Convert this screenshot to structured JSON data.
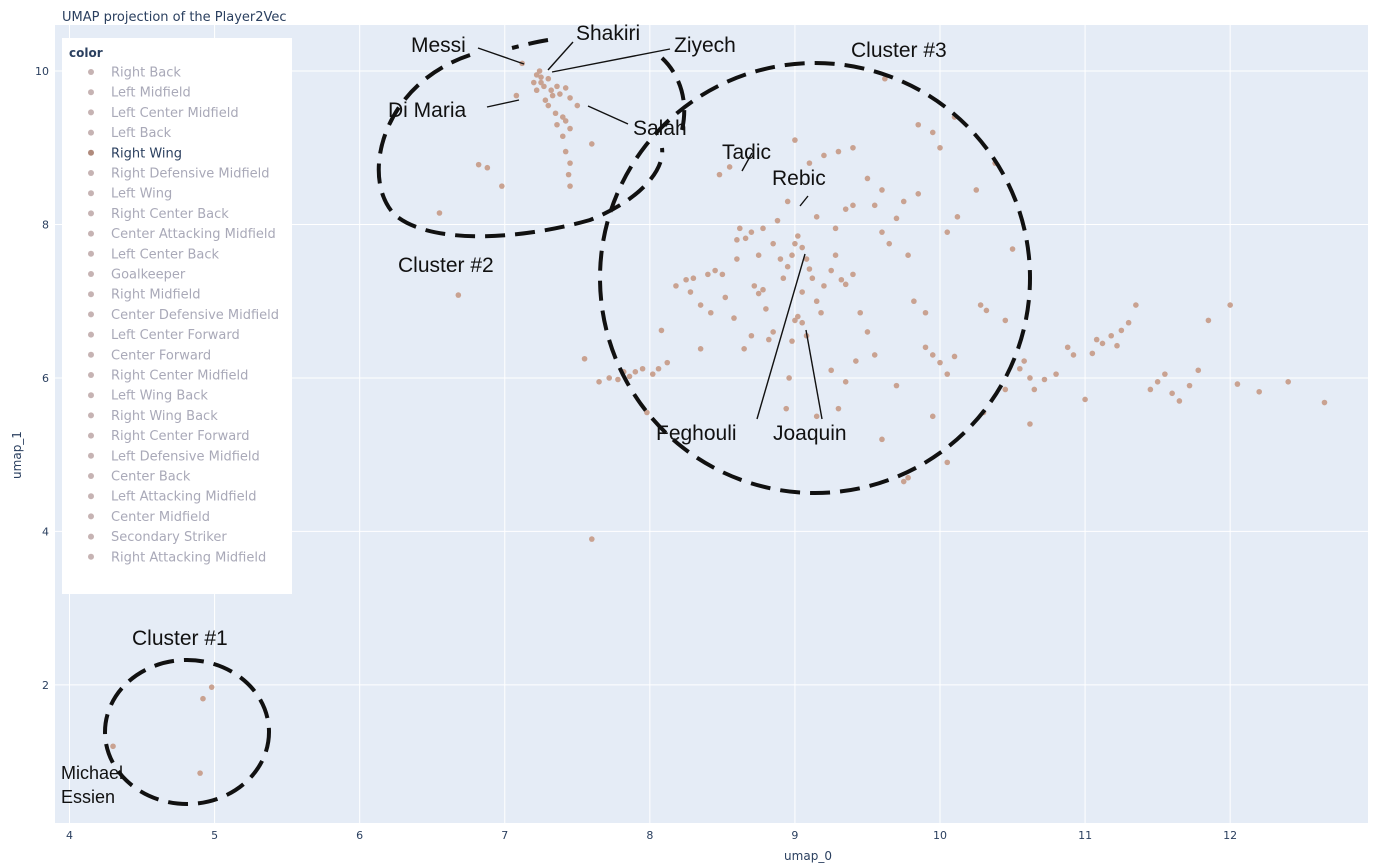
{
  "chart_data": {
    "type": "scatter",
    "title": "UMAP projection of the Player2Vec",
    "xlabel": "umap_0",
    "ylabel": "umap_1",
    "xlim": [
      3.9,
      12.95
    ],
    "ylim": [
      0.2,
      10.6
    ],
    "x_ticks": [
      4,
      5,
      6,
      7,
      8,
      9,
      10,
      11,
      12
    ],
    "y_ticks": [
      2,
      4,
      6,
      8,
      10
    ],
    "grid": true,
    "legend_title": "color",
    "legend_placement": "top-left",
    "point_color": "#c9a291",
    "legend": [
      {
        "label": "Right Back",
        "active": false
      },
      {
        "label": "Left Midfield",
        "active": false
      },
      {
        "label": "Left Center Midfield",
        "active": false
      },
      {
        "label": "Left Back",
        "active": false
      },
      {
        "label": "Right Wing",
        "active": true
      },
      {
        "label": "Right Defensive Midfield",
        "active": false
      },
      {
        "label": "Left Wing",
        "active": false
      },
      {
        "label": "Right Center Back",
        "active": false
      },
      {
        "label": "Center Attacking Midfield",
        "active": false
      },
      {
        "label": "Left Center Back",
        "active": false
      },
      {
        "label": "Goalkeeper",
        "active": false
      },
      {
        "label": "Right Midfield",
        "active": false
      },
      {
        "label": "Center Defensive Midfield",
        "active": false
      },
      {
        "label": "Left Center Forward",
        "active": false
      },
      {
        "label": "Center Forward",
        "active": false
      },
      {
        "label": "Right Center Midfield",
        "active": false
      },
      {
        "label": "Left Wing Back",
        "active": false
      },
      {
        "label": "Right Wing Back",
        "active": false
      },
      {
        "label": "Right Center Forward",
        "active": false
      },
      {
        "label": "Left Defensive Midfield",
        "active": false
      },
      {
        "label": "Center Back",
        "active": false
      },
      {
        "label": "Left Attacking Midfield",
        "active": false
      },
      {
        "label": "Center Midfield",
        "active": false
      },
      {
        "label": "Secondary Striker",
        "active": false
      },
      {
        "label": "Right Attacking Midfield",
        "active": false
      }
    ],
    "points": [
      [
        4.3,
        1.2
      ],
      [
        4.9,
        0.85
      ],
      [
        4.92,
        1.82
      ],
      [
        4.98,
        1.97
      ],
      [
        6.55,
        8.15
      ],
      [
        6.68,
        7.08
      ],
      [
        6.82,
        8.78
      ],
      [
        6.88,
        8.74
      ],
      [
        6.98,
        8.5
      ],
      [
        7.08,
        9.68
      ],
      [
        7.12,
        10.1
      ],
      [
        7.22,
        9.95
      ],
      [
        7.24,
        10.0
      ],
      [
        7.25,
        9.92
      ],
      [
        7.22,
        9.75
      ],
      [
        7.25,
        9.85
      ],
      [
        7.27,
        9.8
      ],
      [
        7.3,
        9.9
      ],
      [
        7.32,
        9.75
      ],
      [
        7.2,
        9.85
      ],
      [
        7.28,
        9.62
      ],
      [
        7.33,
        9.68
      ],
      [
        7.36,
        9.8
      ],
      [
        7.38,
        9.7
      ],
      [
        7.42,
        9.78
      ],
      [
        7.45,
        9.65
      ],
      [
        7.3,
        9.55
      ],
      [
        7.35,
        9.45
      ],
      [
        7.4,
        9.4
      ],
      [
        7.36,
        9.3
      ],
      [
        7.42,
        9.35
      ],
      [
        7.45,
        9.25
      ],
      [
        7.4,
        9.15
      ],
      [
        7.42,
        8.95
      ],
      [
        7.45,
        8.8
      ],
      [
        7.44,
        8.65
      ],
      [
        7.45,
        8.5
      ],
      [
        7.5,
        9.55
      ],
      [
        7.6,
        9.05
      ],
      [
        7.55,
        6.25
      ],
      [
        7.6,
        3.9
      ],
      [
        7.65,
        5.95
      ],
      [
        7.72,
        6.0
      ],
      [
        7.78,
        5.98
      ],
      [
        7.82,
        6.08
      ],
      [
        7.86,
        6.02
      ],
      [
        7.9,
        6.08
      ],
      [
        7.95,
        6.12
      ],
      [
        7.98,
        5.55
      ],
      [
        8.02,
        6.05
      ],
      [
        8.06,
        6.12
      ],
      [
        8.08,
        6.62
      ],
      [
        8.12,
        6.2
      ],
      [
        8.18,
        7.2
      ],
      [
        8.25,
        7.28
      ],
      [
        8.3,
        7.3
      ],
      [
        8.35,
        6.38
      ],
      [
        8.4,
        7.35
      ],
      [
        8.45,
        7.4
      ],
      [
        8.5,
        7.35
      ],
      [
        8.48,
        8.65
      ],
      [
        8.55,
        8.75
      ],
      [
        8.6,
        7.8
      ],
      [
        8.62,
        7.95
      ],
      [
        8.66,
        7.82
      ],
      [
        8.7,
        7.9
      ],
      [
        8.72,
        7.2
      ],
      [
        8.75,
        7.1
      ],
      [
        8.78,
        7.15
      ],
      [
        8.8,
        6.9
      ],
      [
        8.82,
        6.5
      ],
      [
        8.85,
        6.6
      ],
      [
        8.9,
        7.55
      ],
      [
        8.92,
        7.3
      ],
      [
        8.95,
        7.45
      ],
      [
        8.98,
        7.6
      ],
      [
        9.0,
        7.75
      ],
      [
        9.02,
        7.85
      ],
      [
        9.05,
        7.7
      ],
      [
        9.08,
        7.55
      ],
      [
        9.1,
        7.42
      ],
      [
        9.12,
        7.3
      ],
      [
        9.15,
        7.0
      ],
      [
        9.18,
        6.85
      ],
      [
        9.0,
        6.75
      ],
      [
        9.02,
        6.8
      ],
      [
        9.05,
        6.72
      ],
      [
        9.08,
        6.55
      ],
      [
        8.98,
        6.48
      ],
      [
        8.96,
        6.0
      ],
      [
        8.94,
        5.6
      ],
      [
        8.95,
        8.3
      ],
      [
        9.05,
        7.12
      ],
      [
        9.2,
        7.2
      ],
      [
        9.25,
        7.4
      ],
      [
        9.28,
        7.6
      ],
      [
        9.32,
        7.28
      ],
      [
        9.35,
        7.22
      ],
      [
        9.4,
        7.35
      ],
      [
        9.45,
        6.85
      ],
      [
        9.5,
        6.6
      ],
      [
        9.55,
        6.3
      ],
      [
        9.55,
        8.25
      ],
      [
        9.6,
        7.9
      ],
      [
        9.65,
        7.75
      ],
      [
        9.7,
        8.08
      ],
      [
        9.75,
        8.3
      ],
      [
        9.78,
        7.6
      ],
      [
        9.82,
        7.0
      ],
      [
        9.85,
        8.4
      ],
      [
        9.9,
        6.85
      ],
      [
        9.9,
        6.4
      ],
      [
        9.95,
        6.3
      ],
      [
        10.0,
        6.2
      ],
      [
        10.05,
        6.05
      ],
      [
        10.1,
        6.28
      ],
      [
        9.1,
        8.8
      ],
      [
        9.0,
        9.1
      ],
      [
        9.2,
        8.9
      ],
      [
        9.3,
        8.95
      ],
      [
        9.4,
        9.0
      ],
      [
        9.5,
        8.6
      ],
      [
        9.6,
        8.45
      ],
      [
        9.62,
        9.9
      ],
      [
        9.4,
        8.25
      ],
      [
        9.85,
        9.3
      ],
      [
        9.95,
        9.2
      ],
      [
        10.0,
        9.0
      ],
      [
        10.1,
        9.4
      ],
      [
        10.12,
        8.1
      ],
      [
        10.05,
        7.9
      ],
      [
        10.25,
        8.45
      ],
      [
        10.38,
        8.8
      ],
      [
        9.7,
        5.9
      ],
      [
        9.75,
        4.65
      ],
      [
        9.78,
        4.7
      ],
      [
        9.95,
        5.5
      ],
      [
        10.05,
        4.9
      ],
      [
        10.28,
        6.95
      ],
      [
        10.32,
        6.88
      ],
      [
        10.45,
        6.75
      ],
      [
        10.5,
        7.68
      ],
      [
        10.58,
        6.22
      ],
      [
        10.62,
        6.0
      ],
      [
        10.65,
        5.85
      ],
      [
        10.72,
        5.98
      ],
      [
        10.8,
        6.05
      ],
      [
        10.88,
        6.4
      ],
      [
        10.92,
        6.3
      ],
      [
        11.0,
        5.72
      ],
      [
        11.05,
        6.32
      ],
      [
        11.08,
        6.5
      ],
      [
        11.12,
        6.45
      ],
      [
        11.18,
        6.55
      ],
      [
        11.22,
        6.42
      ],
      [
        11.25,
        6.62
      ],
      [
        11.3,
        6.72
      ],
      [
        11.35,
        6.95
      ],
      [
        11.45,
        5.85
      ],
      [
        11.5,
        5.95
      ],
      [
        11.55,
        6.05
      ],
      [
        11.6,
        5.8
      ],
      [
        11.65,
        5.7
      ],
      [
        11.72,
        5.9
      ],
      [
        11.78,
        6.1
      ],
      [
        11.85,
        6.75
      ],
      [
        12.0,
        6.95
      ],
      [
        12.05,
        5.92
      ],
      [
        12.2,
        5.82
      ],
      [
        12.4,
        5.95
      ],
      [
        12.65,
        5.68
      ],
      [
        10.45,
        5.85
      ],
      [
        10.55,
        6.12
      ],
      [
        10.3,
        5.55
      ],
      [
        10.62,
        5.4
      ],
      [
        9.6,
        5.2
      ],
      [
        9.3,
        5.6
      ],
      [
        9.15,
        5.5
      ],
      [
        9.25,
        6.1
      ],
      [
        9.35,
        5.95
      ],
      [
        9.42,
        6.22
      ],
      [
        8.65,
        6.38
      ],
      [
        8.7,
        6.55
      ],
      [
        8.58,
        6.78
      ],
      [
        8.52,
        7.05
      ],
      [
        8.42,
        6.85
      ],
      [
        8.35,
        6.95
      ],
      [
        8.28,
        7.12
      ],
      [
        8.6,
        7.55
      ],
      [
        8.75,
        7.6
      ],
      [
        8.85,
        7.75
      ],
      [
        8.78,
        7.95
      ],
      [
        8.88,
        8.05
      ],
      [
        9.15,
        8.1
      ],
      [
        9.28,
        7.95
      ],
      [
        9.35,
        8.2
      ]
    ],
    "annotations": [
      {
        "text": "Messi"
      },
      {
        "text": "Shakiri"
      },
      {
        "text": "Ziyech"
      },
      {
        "text": "Di Maria"
      },
      {
        "text": "Salah"
      },
      {
        "text": "Cluster #3"
      },
      {
        "text": "Tadic"
      },
      {
        "text": "Rebic"
      },
      {
        "text": "Cluster #2"
      },
      {
        "text": "Feghouli"
      },
      {
        "text": "Joaquin"
      },
      {
        "text": "Cluster #1"
      },
      {
        "text": "Michael"
      },
      {
        "text": "Essien"
      }
    ]
  }
}
